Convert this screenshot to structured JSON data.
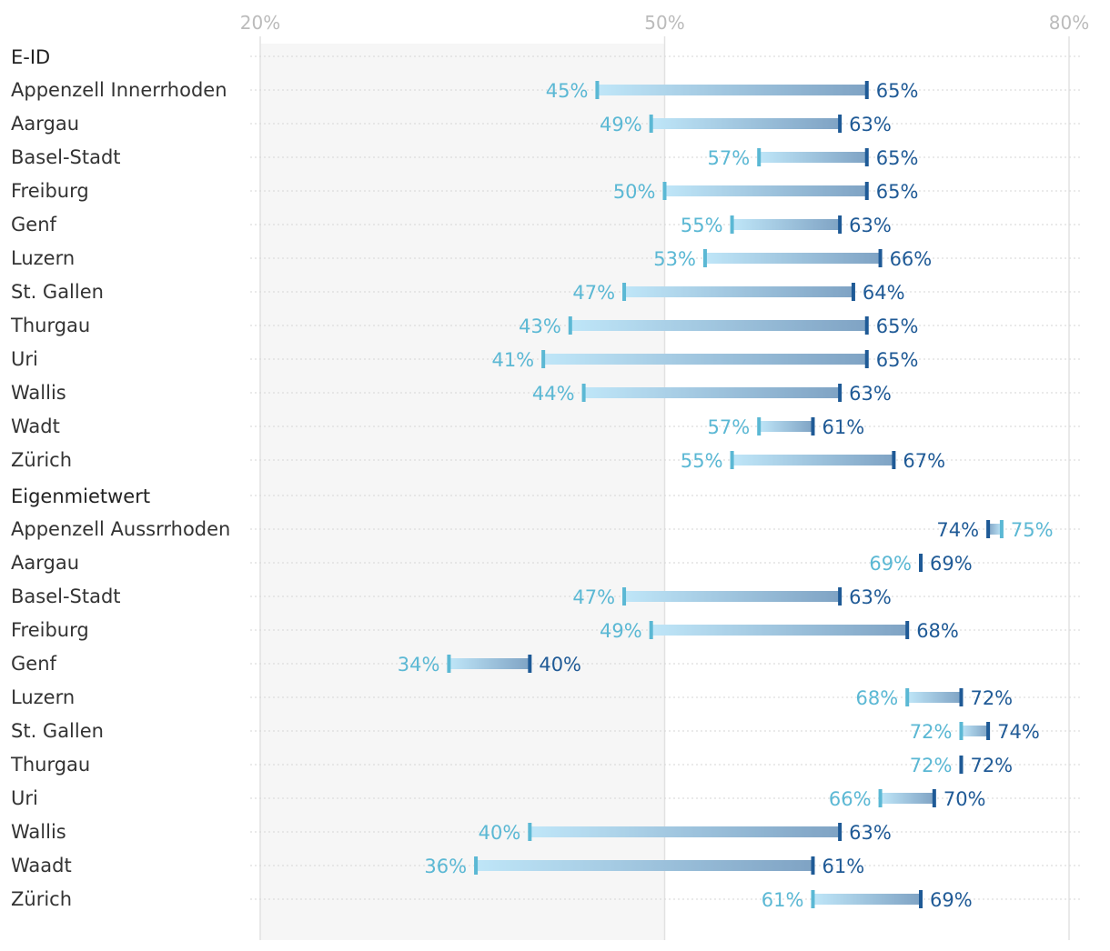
{
  "chart_data": {
    "type": "dumbbell",
    "axis": {
      "range": [
        20,
        80
      ],
      "ticks": [
        {
          "value": 20,
          "label": "20%"
        },
        {
          "value": 50,
          "label": "50%"
        },
        {
          "value": 80,
          "label": "80%"
        }
      ],
      "shaded_range": [
        20,
        50
      ]
    },
    "colors": {
      "start": "#5bb8d4",
      "end": "#1f5a96",
      "bar_light": "#bfe6f8",
      "bar_dark": "#7fa3c4",
      "shade": "#f6f6f6"
    },
    "groups": [
      {
        "title": "E-ID",
        "rows": [
          {
            "label": "Appenzell Innerrhoden",
            "start": 45,
            "end": 65,
            "start_label": "45%",
            "end_label": "65%"
          },
          {
            "label": "Aargau",
            "start": 49,
            "end": 63,
            "start_label": "49%",
            "end_label": "63%"
          },
          {
            "label": "Basel-Stadt",
            "start": 57,
            "end": 65,
            "start_label": "57%",
            "end_label": "65%"
          },
          {
            "label": "Freiburg",
            "start": 50,
            "end": 65,
            "start_label": "50%",
            "end_label": "65%"
          },
          {
            "label": "Genf",
            "start": 55,
            "end": 63,
            "start_label": "55%",
            "end_label": "63%"
          },
          {
            "label": "Luzern",
            "start": 53,
            "end": 66,
            "start_label": "53%",
            "end_label": "66%"
          },
          {
            "label": "St. Gallen",
            "start": 47,
            "end": 64,
            "start_label": "47%",
            "end_label": "64%"
          },
          {
            "label": "Thurgau",
            "start": 43,
            "end": 65,
            "start_label": "43%",
            "end_label": "65%"
          },
          {
            "label": "Uri",
            "start": 41,
            "end": 65,
            "start_label": "41%",
            "end_label": "65%"
          },
          {
            "label": "Wallis",
            "start": 44,
            "end": 63,
            "start_label": "44%",
            "end_label": "63%"
          },
          {
            "label": "Wadt",
            "start": 57,
            "end": 61,
            "start_label": "57%",
            "end_label": "61%"
          },
          {
            "label": "Zürich",
            "start": 55,
            "end": 67,
            "start_label": "55%",
            "end_label": "67%"
          }
        ]
      },
      {
        "title": "Eigenmietwert",
        "rows": [
          {
            "label": "Appenzell Aussrrhoden",
            "start": 75,
            "end": 74,
            "start_label": "75%",
            "end_label": "74%"
          },
          {
            "label": "Aargau",
            "start": 69,
            "end": 69,
            "start_label": "69%",
            "end_label": "69%"
          },
          {
            "label": "Basel-Stadt",
            "start": 47,
            "end": 63,
            "start_label": "47%",
            "end_label": "63%"
          },
          {
            "label": "Freiburg",
            "start": 49,
            "end": 68,
            "start_label": "49%",
            "end_label": "68%"
          },
          {
            "label": "Genf",
            "start": 34,
            "end": 40,
            "start_label": "34%",
            "end_label": "40%"
          },
          {
            "label": "Luzern",
            "start": 68,
            "end": 72,
            "start_label": "68%",
            "end_label": "72%"
          },
          {
            "label": "St. Gallen",
            "start": 72,
            "end": 74,
            "start_label": "72%",
            "end_label": "74%"
          },
          {
            "label": "Thurgau",
            "start": 72,
            "end": 72,
            "start_label": "72%",
            "end_label": "72%"
          },
          {
            "label": "Uri",
            "start": 66,
            "end": 70,
            "start_label": "66%",
            "end_label": "70%"
          },
          {
            "label": "Wallis",
            "start": 40,
            "end": 63,
            "start_label": "40%",
            "end_label": "63%"
          },
          {
            "label": "Waadt",
            "start": 36,
            "end": 61,
            "start_label": "36%",
            "end_label": "61%"
          },
          {
            "label": "Zürich",
            "start": 61,
            "end": 69,
            "start_label": "61%",
            "end_label": "69%"
          }
        ]
      }
    ]
  }
}
